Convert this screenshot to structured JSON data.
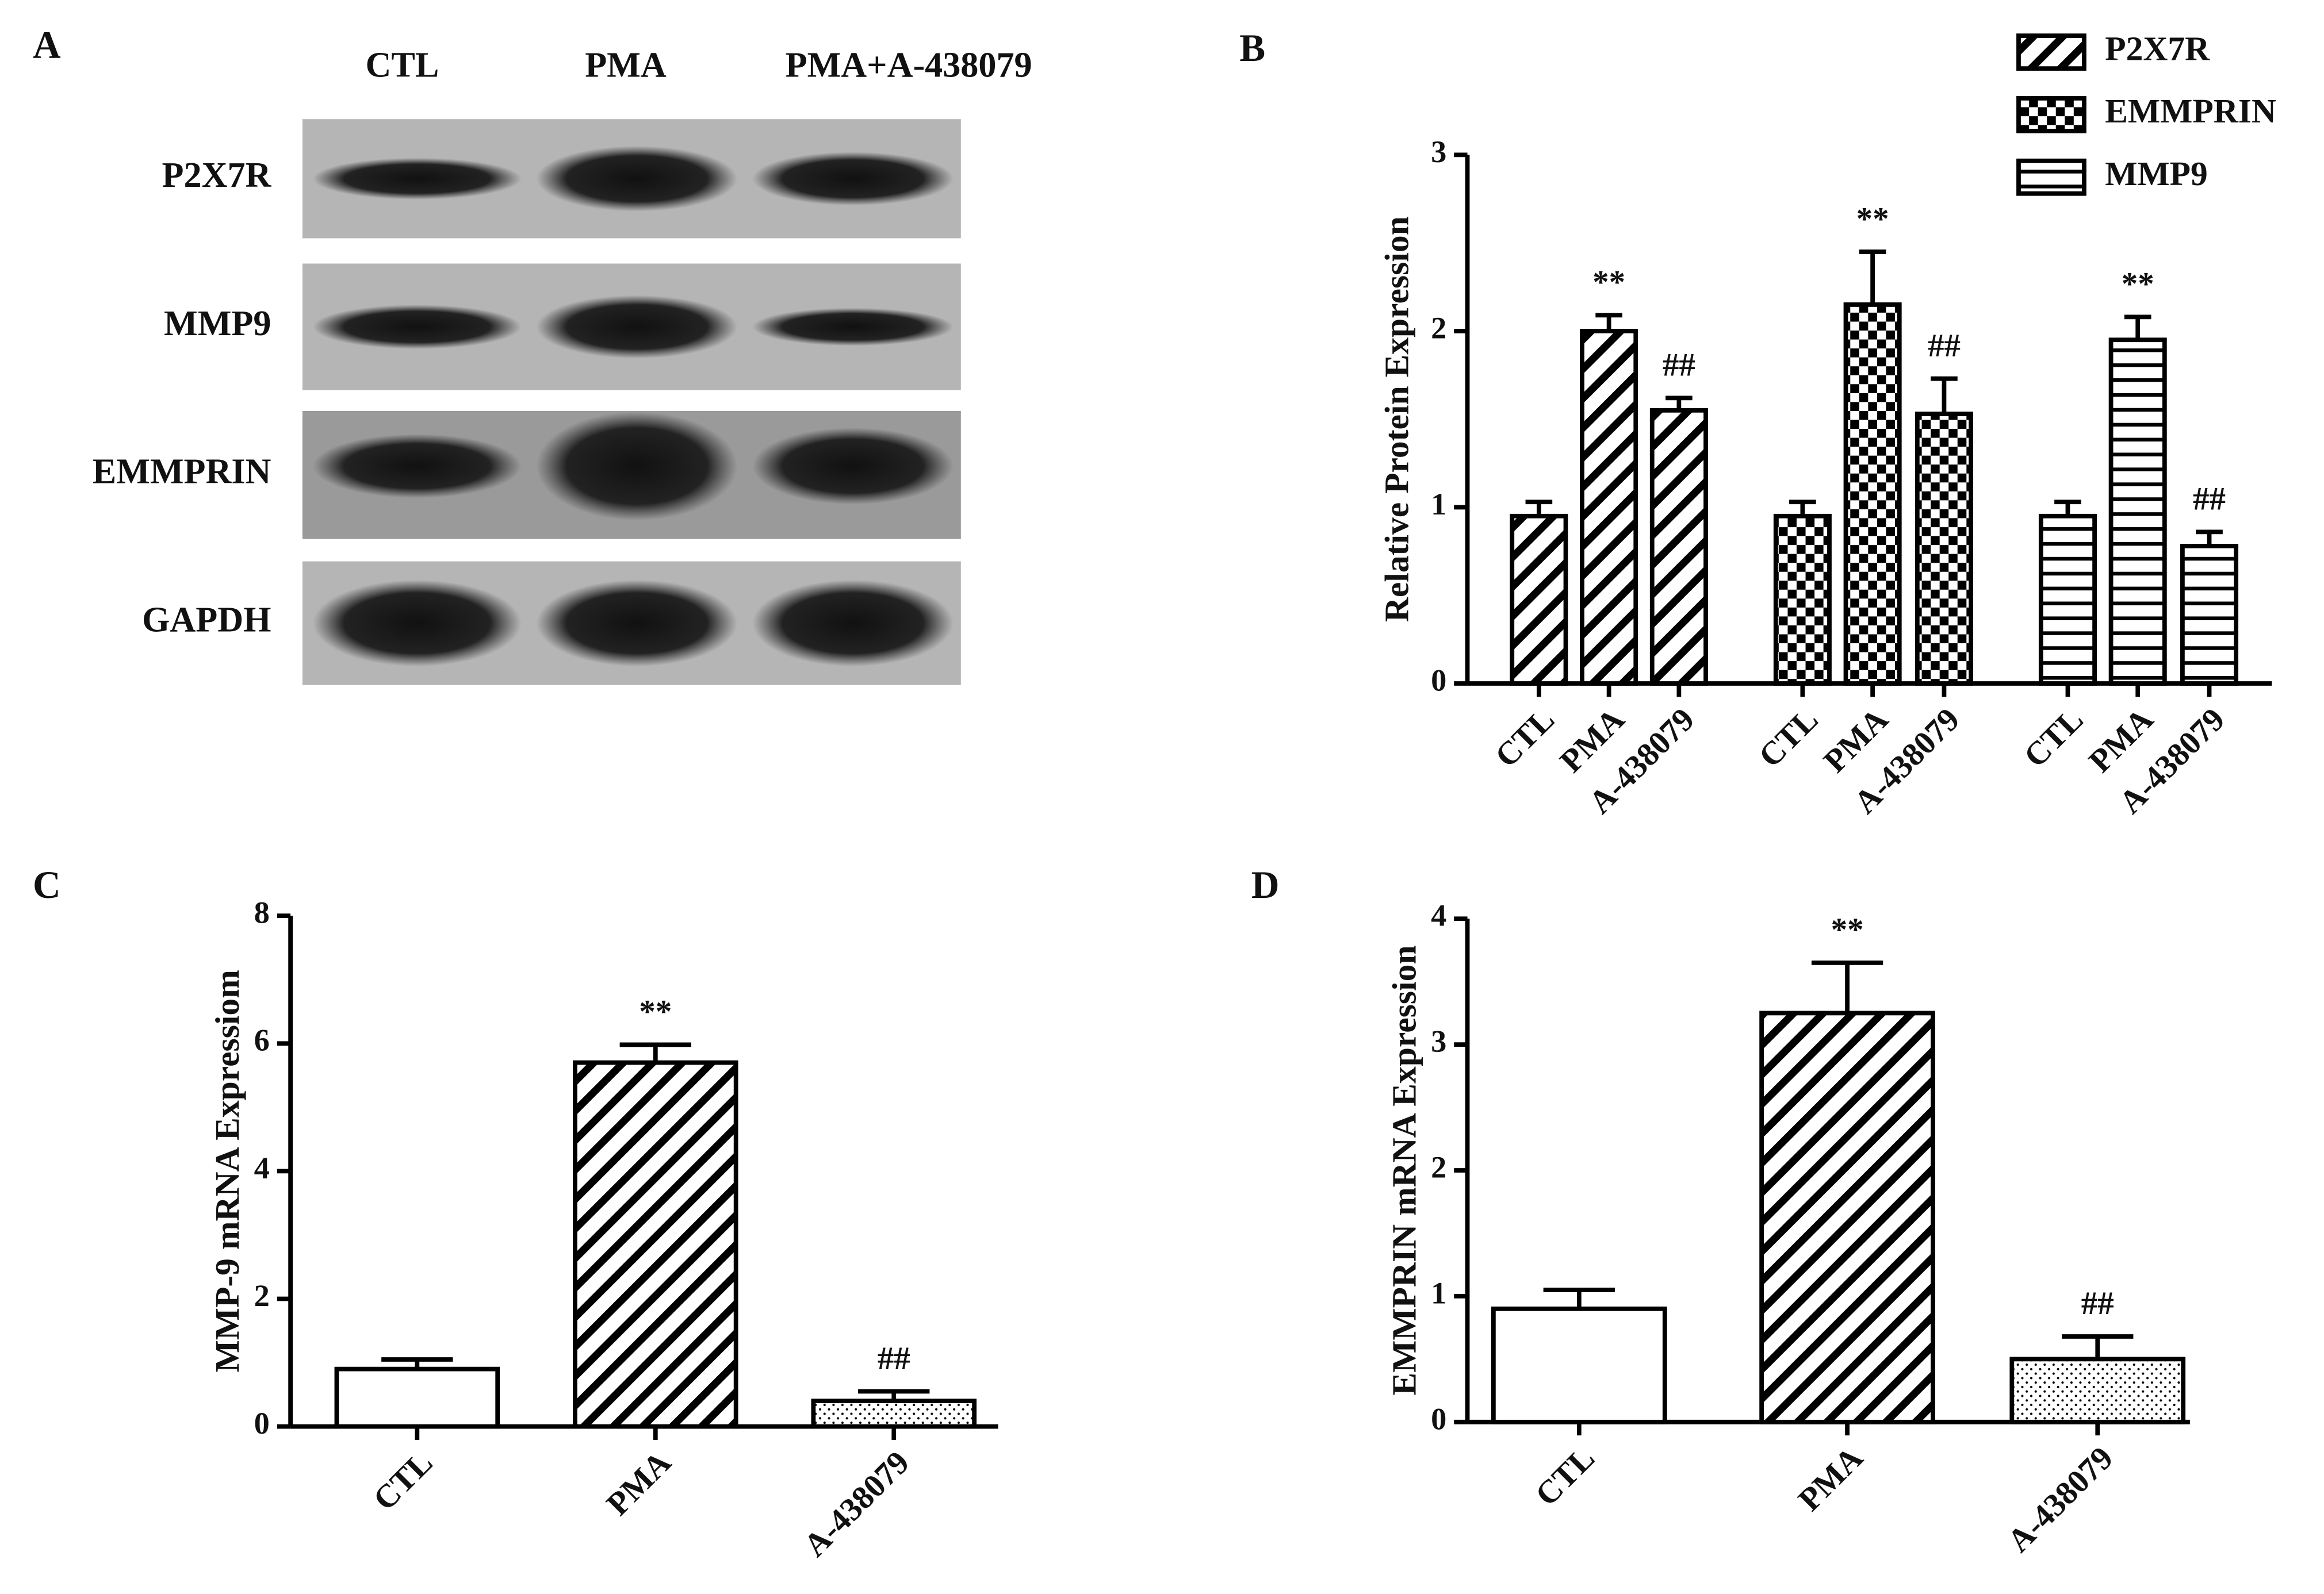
{
  "blot": {
    "panel_label": "A",
    "columns": [
      "CTL",
      "PMA",
      "PMA+A-438079"
    ],
    "rows": [
      "P2X7R",
      "MMP9",
      "EMMPRIN",
      "GAPDH"
    ]
  },
  "chart_data": [
    {
      "type": "bar",
      "panel_label": "B",
      "ylabel": "Relative Protein Expression",
      "categories": [
        "CTL",
        "PMA",
        "A-438079"
      ],
      "series": [
        {
          "name": "P2X7R",
          "pattern": "diagonal",
          "color": "#000000",
          "values": [
            0.95,
            2.0,
            1.55
          ],
          "errors": [
            0.08,
            0.09,
            0.07
          ],
          "markers": [
            null,
            "**",
            "##"
          ]
        },
        {
          "name": "EMMPRIN",
          "pattern": "checker",
          "color": "#000000",
          "values": [
            0.95,
            2.15,
            1.53
          ],
          "errors": [
            0.08,
            0.3,
            0.2
          ],
          "markers": [
            null,
            "**",
            "##"
          ]
        },
        {
          "name": "MMP9",
          "pattern": "horizontal",
          "color": "#000000",
          "values": [
            0.95,
            1.95,
            0.78
          ],
          "errors": [
            0.08,
            0.13,
            0.08
          ],
          "markers": [
            null,
            "**",
            "##"
          ]
        }
      ],
      "ylim": [
        0,
        3
      ],
      "yticks": [
        0,
        1,
        2,
        3
      ],
      "legend": "top-right"
    },
    {
      "type": "bar",
      "panel_label": "C",
      "ylabel": "MMP-9 mRNA Expressiom",
      "categories": [
        "CTL",
        "PMA",
        "A-438079"
      ],
      "values": [
        0.9,
        5.7,
        0.4
      ],
      "errors": [
        0.15,
        0.28,
        0.15
      ],
      "markers": [
        null,
        "**",
        "##"
      ],
      "patterns": [
        "none",
        "diagonal",
        "dots"
      ],
      "color": "#000000",
      "ylim": [
        0,
        8
      ],
      "yticks": [
        0,
        2,
        4,
        6,
        8
      ]
    },
    {
      "type": "bar",
      "panel_label": "D",
      "ylabel": "EMMPRIN mRNA Expression",
      "categories": [
        "CTL",
        "PMA",
        "A-438079"
      ],
      "values": [
        0.9,
        3.25,
        0.5
      ],
      "errors": [
        0.15,
        0.4,
        0.18
      ],
      "markers": [
        null,
        "**",
        "##"
      ],
      "patterns": [
        "none",
        "diagonal",
        "dots"
      ],
      "color": "#000000",
      "ylim": [
        0,
        4
      ],
      "yticks": [
        0,
        1,
        2,
        3,
        4
      ]
    }
  ]
}
